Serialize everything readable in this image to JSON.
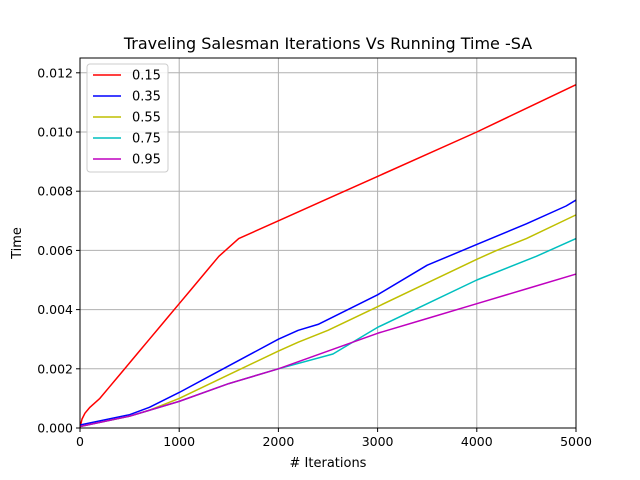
{
  "chart_data": {
    "type": "line",
    "title": "Traveling Salesman Iterations Vs Running Time -SA",
    "xlabel": "# Iterations",
    "ylabel": "Time",
    "xlim": [
      0,
      5000
    ],
    "ylim": [
      0,
      0.0125
    ],
    "xticks": [
      0,
      1000,
      2000,
      3000,
      4000,
      5000
    ],
    "xtick_labels": [
      "0",
      "1000",
      "2000",
      "3000",
      "4000",
      "5000"
    ],
    "yticks": [
      0,
      0.002,
      0.004,
      0.006,
      0.008,
      0.01,
      0.012
    ],
    "ytick_labels": [
      "0.000",
      "0.002",
      "0.004",
      "0.006",
      "0.008",
      "0.010",
      "0.012"
    ],
    "grid": true,
    "legend_position": "top-left",
    "series": [
      {
        "name": "0.15",
        "color": "#ff0000",
        "x": [
          0,
          20,
          50,
          100,
          200,
          300,
          400,
          500,
          600,
          700,
          800,
          900,
          1000,
          1100,
          1200,
          1300,
          1400,
          1500,
          1600,
          2000,
          2500,
          3000,
          3500,
          4000,
          4500,
          5000
        ],
        "y": [
          0,
          0.0003,
          0.0005,
          0.0007,
          0.001,
          0.0014,
          0.0018,
          0.0022,
          0.0026,
          0.003,
          0.0034,
          0.0038,
          0.0042,
          0.0046,
          0.005,
          0.0054,
          0.0058,
          0.0061,
          0.0064,
          0.007,
          0.00775,
          0.0085,
          0.00925,
          0.01,
          0.0108,
          0.0116
        ]
      },
      {
        "name": "0.35",
        "color": "#0000ff",
        "x": [
          0,
          500,
          700,
          1000,
          1500,
          2000,
          2200,
          2400,
          3000,
          3500,
          4000,
          4500,
          4900,
          5000
        ],
        "y": [
          0.0001,
          0.00045,
          0.0007,
          0.0012,
          0.0021,
          0.003,
          0.0033,
          0.0035,
          0.0045,
          0.0055,
          0.0062,
          0.0069,
          0.0075,
          0.0077
        ]
      },
      {
        "name": "0.55",
        "color": "#bfbf00",
        "x": [
          0,
          500,
          700,
          1000,
          1500,
          2000,
          2200,
          2500,
          3000,
          3500,
          4000,
          4200,
          4500,
          5000
        ],
        "y": [
          5e-05,
          0.0004,
          0.0006,
          0.001,
          0.0018,
          0.0026,
          0.0029,
          0.0033,
          0.0041,
          0.0049,
          0.0057,
          0.006,
          0.0064,
          0.0072
        ]
      },
      {
        "name": "0.75",
        "color": "#00bfbf",
        "x": [
          0,
          500,
          700,
          1000,
          1500,
          2000,
          2550,
          2900,
          3000,
          3500,
          4000,
          4600,
          5000
        ],
        "y": [
          5e-05,
          0.0004,
          0.0006,
          0.0009,
          0.0015,
          0.002,
          0.0025,
          0.0032,
          0.0034,
          0.0042,
          0.005,
          0.0058,
          0.0064
        ]
      },
      {
        "name": "0.95",
        "color": "#bf00bf",
        "x": [
          0,
          500,
          700,
          1000,
          1500,
          2000,
          2500,
          3000,
          3500,
          4000,
          4500,
          5000
        ],
        "y": [
          5e-05,
          0.0004,
          0.0006,
          0.0009,
          0.0015,
          0.002,
          0.0026,
          0.0032,
          0.0037,
          0.0042,
          0.0047,
          0.0052
        ]
      }
    ]
  }
}
